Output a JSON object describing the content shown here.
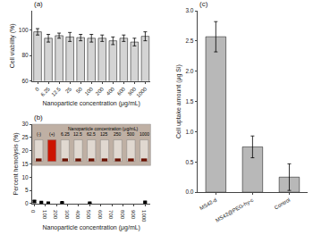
{
  "chart_data": [
    {
      "type": "bar",
      "title": "(a)",
      "categories": [
        "0",
        "6.25",
        "12.5",
        "25",
        "50",
        "100",
        "200",
        "400",
        "600",
        "800",
        "1000"
      ],
      "values": [
        98.5,
        93.5,
        95.5,
        94.5,
        94.0,
        93.5,
        93.5,
        91.5,
        93.5,
        90.5,
        95.0
      ],
      "errors": [
        2.5,
        3.0,
        2.0,
        3.5,
        2.5,
        3.0,
        2.5,
        3.0,
        2.5,
        3.0,
        3.5
      ],
      "xlabel": "Nanoparticle concentration (μg/mL)",
      "ylabel": "Cell viability (%)",
      "color": "#d4d4d4",
      "ylim": [
        60,
        115
      ],
      "yticks": [
        60,
        80,
        100
      ],
      "grid": false
    },
    {
      "type": "scatter",
      "title": "(b)",
      "x": [
        0,
        62.5,
        125,
        250,
        500,
        1000
      ],
      "values": [
        0.8,
        0.4,
        0.15,
        0.3,
        0.15,
        0.5
      ],
      "errors": [
        0.35,
        0.2,
        0.1,
        0.15,
        0.1,
        0.2
      ],
      "xlabel": "Nanoparticle concentration (μg/mL)",
      "ylabel": "Percent hemolysis (%)",
      "color": "black",
      "marker": "square",
      "xlim": [
        -20,
        1050
      ],
      "xticks": [
        0,
        100,
        200,
        300,
        400,
        500,
        600,
        700,
        800,
        900,
        1000
      ],
      "ylim": [
        0,
        30
      ],
      "yticks": [
        0,
        5,
        10,
        15,
        20,
        25,
        30
      ],
      "grid": false,
      "annotations": [
        "Nanoparticle concentration (μg/mL)",
        "(-)",
        "(+)",
        "6.25",
        "12.5",
        "62.5",
        "125",
        "250",
        "500",
        "1000"
      ]
    },
    {
      "type": "bar",
      "title": "(c)",
      "categories": [
        "MS42-d",
        "MS42@PEG-hy-c",
        "Control"
      ],
      "values": [
        2.57,
        0.75,
        0.25
      ],
      "errors": [
        0.25,
        0.18,
        0.22
      ],
      "ylabel": "Cell uptake amount (μg Si)",
      "color": "#b8b8b8",
      "ylim": [
        0,
        3.0
      ],
      "yticks": [
        {
          "value": 0,
          "label": "0.0"
        },
        0.5,
        {
          "value": 1,
          "label": "1.0"
        },
        1.5,
        {
          "value": 2,
          "label": "2.0"
        },
        2.5,
        {
          "value": 3,
          "label": "3.0"
        }
      ],
      "grid": false
    }
  ]
}
